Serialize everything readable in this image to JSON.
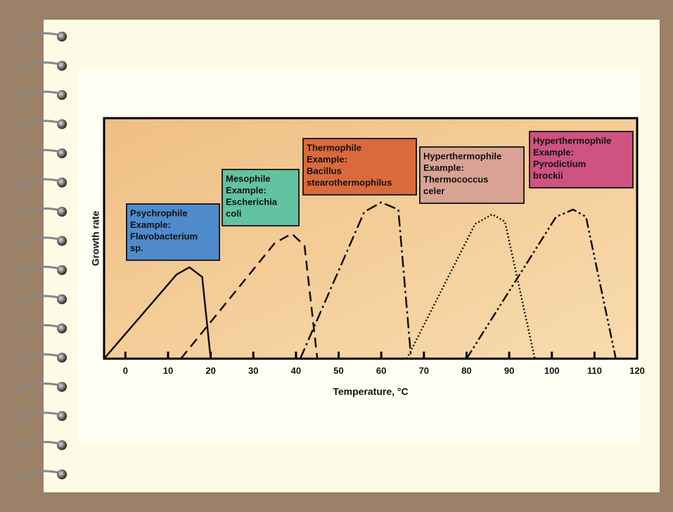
{
  "chart_data": {
    "type": "line",
    "x_label": "Temperature, °C",
    "y_label": "Growth rate",
    "xlim": [
      -5,
      120
    ],
    "xticks": [
      0,
      10,
      20,
      30,
      40,
      50,
      60,
      70,
      80,
      90,
      100,
      110,
      120
    ],
    "ylim": [
      0,
      100
    ],
    "series": [
      {
        "name": "Psychrophile",
        "label": [
          "Example:",
          "Flavobacterium",
          "sp."
        ],
        "color": "#4f8bcc",
        "dash": "none",
        "x": [
          -5,
          12,
          15,
          18,
          20
        ],
        "values": [
          0,
          35,
          38,
          34,
          0
        ]
      },
      {
        "name": "Mesophile",
        "label": [
          "Example:",
          "Escherichia",
          "coli"
        ],
        "color": "#63c3a0",
        "dash": "14 8",
        "x": [
          13,
          35,
          39,
          42,
          45
        ],
        "values": [
          0,
          48,
          52,
          47,
          0
        ]
      },
      {
        "name": "Thermophile",
        "label": [
          "Example:",
          "Bacillus",
          "stearothermophilus"
        ],
        "color": "#da6a3c",
        "dash": "16 5 3 5",
        "x": [
          41,
          56,
          60,
          64,
          67
        ],
        "values": [
          0,
          61,
          65,
          62,
          0
        ]
      },
      {
        "name": "Hyperthermophile",
        "label": [
          "Example:",
          "Thermococcus",
          "celer"
        ],
        "color": "#d8a393",
        "dash": "2 3",
        "x": [
          66,
          82,
          86,
          89,
          96
        ],
        "values": [
          0,
          56,
          60,
          57,
          0
        ]
      },
      {
        "name": "Hyperthermophile",
        "label": [
          "Example:",
          "Pyrodictium",
          "brockii"
        ],
        "color": "#cf5280",
        "dash": "14 4 3 4 3 4",
        "x": [
          80,
          101,
          105,
          108,
          115
        ],
        "values": [
          0,
          59,
          62,
          59,
          0
        ]
      }
    ]
  }
}
